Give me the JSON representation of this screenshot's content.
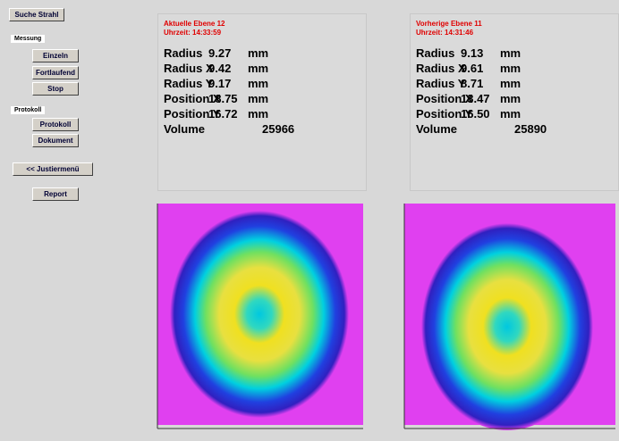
{
  "sidebar": {
    "search_button": "Suche Strahl",
    "measure_label": "Messung",
    "measure_buttons": [
      "Einzeln",
      "Fortlaufend",
      "Stop"
    ],
    "protocol_label": "Protokoll",
    "protocol_buttons": [
      "Protokoll",
      "Dokument"
    ],
    "adjust_button": "<< Justiermenü",
    "report_button": "Report"
  },
  "panels": [
    {
      "title": "Aktuelle Ebene 12",
      "time": "Uhrzeit: 14:33:59",
      "rows": [
        {
          "label": "Radius",
          "value": "9.27",
          "unit": "mm"
        },
        {
          "label": "Radius X",
          "value": "9.42",
          "unit": "mm"
        },
        {
          "label": "Radius Y",
          "value": "9.17",
          "unit": "mm"
        },
        {
          "label": "Position X",
          "value": "18.75",
          "unit": "mm"
        },
        {
          "label": "Position Y",
          "value": "16.72",
          "unit": "mm"
        },
        {
          "label": "Volume",
          "value": "25966"
        }
      ]
    },
    {
      "title": "Vorherige Ebene 11",
      "time": "Uhrzeit: 14:31:46",
      "rows": [
        {
          "label": "Radius",
          "value": "9.13",
          "unit": "mm"
        },
        {
          "label": "Radius X",
          "value": "9.61",
          "unit": "mm"
        },
        {
          "label": "Radius Y",
          "value": "8.71",
          "unit": "mm"
        },
        {
          "label": "Position X",
          "value": "13.47",
          "unit": "mm"
        },
        {
          "label": "Position Y",
          "value": "16.50",
          "unit": "mm"
        },
        {
          "label": "Volume",
          "value": "25890"
        }
      ]
    }
  ]
}
